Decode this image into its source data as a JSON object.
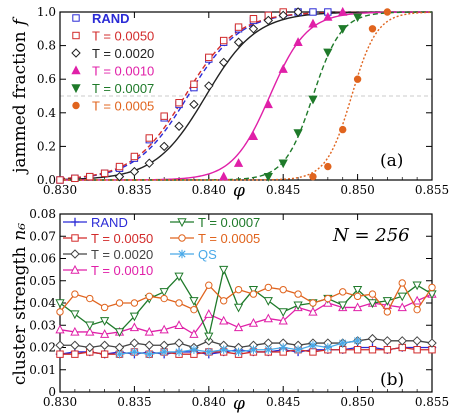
{
  "chart_data": [
    {
      "panel_label": "(a)",
      "type": "line",
      "xlabel": "φ",
      "ylabel": "jammed fraction",
      "ylabel_symbol": "f",
      "xlim": [
        0.83,
        0.855
      ],
      "ylim": [
        0,
        1.0
      ],
      "x_ticks": [
        "0.830",
        "0.835",
        "0.840",
        "0.845",
        "0.850",
        "0.855"
      ],
      "y_ticks": [
        "0.0",
        "0.2",
        "0.4",
        "0.6",
        "0.8",
        "1.0"
      ],
      "reference_line_y": 0.5,
      "legend_position": "top-left",
      "series": [
        {
          "name": "RAND",
          "color": "#2b2bd6",
          "marker": "square-open",
          "dash": "dash",
          "fit_center": 0.8386,
          "fit_width": 0.00175,
          "x": [
            0.83,
            0.831,
            0.832,
            0.833,
            0.834,
            0.835,
            0.836,
            0.837,
            0.838,
            0.839,
            0.84,
            0.841,
            0.842,
            0.843,
            0.844,
            0.845,
            0.846,
            0.847,
            0.848
          ],
          "y": [
            0.0,
            0.01,
            0.02,
            0.04,
            0.07,
            0.13,
            0.24,
            0.37,
            0.45,
            0.55,
            0.72,
            0.82,
            0.9,
            0.95,
            0.98,
            0.99,
            1.0,
            1.0,
            1.0
          ]
        },
        {
          "name": "T = 0.0050",
          "color": "#d22b2b",
          "marker": "square-open",
          "dash": "dash",
          "fit_center": 0.8384,
          "fit_width": 0.00175,
          "x": [
            0.83,
            0.831,
            0.832,
            0.833,
            0.834,
            0.835,
            0.836,
            0.837,
            0.838,
            0.839,
            0.84,
            0.841,
            0.842,
            0.843,
            0.844,
            0.845
          ],
          "y": [
            0.0,
            0.01,
            0.02,
            0.04,
            0.08,
            0.14,
            0.25,
            0.38,
            0.46,
            0.57,
            0.73,
            0.83,
            0.91,
            0.96,
            0.98,
            1.0
          ]
        },
        {
          "name": "T = 0.0020",
          "color": "#222222",
          "marker": "diamond-open",
          "dash": "solid",
          "fit_center": 0.8398,
          "fit_width": 0.0017,
          "x": [
            0.834,
            0.835,
            0.836,
            0.837,
            0.838,
            0.839,
            0.84,
            0.841,
            0.842,
            0.843,
            0.844,
            0.845,
            0.846
          ],
          "y": [
            0.02,
            0.05,
            0.1,
            0.2,
            0.32,
            0.45,
            0.56,
            0.7,
            0.82,
            0.9,
            0.95,
            0.98,
            1.0
          ]
        },
        {
          "name": "T = 0.0010",
          "color": "#e020a8",
          "marker": "triangle-up-filled",
          "dash": "solid",
          "fit_center": 0.8441,
          "fit_width": 0.00125,
          "x": [
            0.841,
            0.842,
            0.843,
            0.844,
            0.845,
            0.846,
            0.847,
            0.848,
            0.849
          ],
          "y": [
            0.02,
            0.1,
            0.26,
            0.45,
            0.66,
            0.82,
            0.93,
            0.97,
            1.0
          ]
        },
        {
          "name": "T = 0.0007",
          "color": "#1f7a2a",
          "marker": "triangle-down-filled",
          "dash": "dash",
          "fit_center": 0.847,
          "fit_width": 0.00095,
          "x": [
            0.844,
            0.845,
            0.846,
            0.847,
            0.848,
            0.849,
            0.85
          ],
          "y": [
            0.02,
            0.1,
            0.28,
            0.48,
            0.76,
            0.9,
            0.97
          ]
        },
        {
          "name": "T = 0.0005",
          "color": "#e0641e",
          "marker": "circle-filled",
          "dash": "dot",
          "fit_center": 0.8496,
          "fit_width": 0.00085,
          "x": [
            0.847,
            0.848,
            0.849,
            0.85,
            0.851,
            0.852
          ],
          "y": [
            0.02,
            0.08,
            0.3,
            0.6,
            0.9,
            1.0
          ]
        }
      ]
    },
    {
      "panel_label": "(b)",
      "type": "line",
      "xlabel": "φ",
      "ylabel": "cluster strength",
      "ylabel_symbol": "n₆",
      "annotation": "N = 256",
      "xlim": [
        0.83,
        0.855
      ],
      "ylim": [
        0,
        0.08
      ],
      "x_ticks": [
        "0.830",
        "0.835",
        "0.840",
        "0.845",
        "0.850",
        "0.855"
      ],
      "y_ticks": [
        "0",
        "0.01",
        "0.02",
        "0.03",
        "0.04",
        "0.05",
        "0.06",
        "0.07",
        "0.08"
      ],
      "legend_position": "top-left",
      "x": [
        0.83,
        0.831,
        0.832,
        0.833,
        0.834,
        0.835,
        0.836,
        0.837,
        0.838,
        0.839,
        0.84,
        0.841,
        0.842,
        0.843,
        0.844,
        0.845,
        0.846,
        0.847,
        0.848,
        0.849,
        0.85,
        0.851,
        0.852,
        0.853,
        0.854,
        0.855
      ],
      "series": [
        {
          "name": "RAND",
          "color": "#2b2bd6",
          "marker": "plus",
          "values": [
            0.017,
            0.018,
            0.018,
            0.017,
            0.018,
            0.017,
            0.018,
            0.017,
            0.018,
            0.018,
            0.017,
            0.018,
            0.019,
            0.018,
            0.018,
            0.019,
            0.018,
            0.019,
            0.019,
            0.019,
            0.02,
            0.02,
            0.019,
            0.02,
            0.02,
            0.02
          ]
        },
        {
          "name": "T = 0.0050",
          "color": "#d22b2b",
          "marker": "square-open",
          "values": [
            0.017,
            0.017,
            0.018,
            0.017,
            0.017,
            0.018,
            0.017,
            0.018,
            0.017,
            0.017,
            0.018,
            0.018,
            0.017,
            0.018,
            0.018,
            0.018,
            0.019,
            0.018,
            0.019,
            0.019,
            0.019,
            0.019,
            0.019,
            0.02,
            0.019,
            0.019
          ]
        },
        {
          "name": "T = 0.0020",
          "color": "#444444",
          "marker": "diamond-open",
          "values": [
            0.021,
            0.021,
            0.02,
            0.021,
            0.02,
            0.022,
            0.021,
            0.021,
            0.022,
            0.02,
            0.023,
            0.021,
            0.02,
            0.021,
            0.022,
            0.022,
            0.021,
            0.022,
            0.022,
            0.022,
            0.023,
            0.024,
            0.023,
            0.023,
            0.023,
            0.022
          ]
        },
        {
          "name": "T = 0.0010",
          "color": "#e020a8",
          "marker": "triangle-up-open",
          "values": [
            0.028,
            0.027,
            0.027,
            0.026,
            0.027,
            0.029,
            0.027,
            0.028,
            0.03,
            0.026,
            0.035,
            0.032,
            0.029,
            0.031,
            0.033,
            0.032,
            0.038,
            0.036,
            0.04,
            0.038,
            0.038,
            0.04,
            0.039,
            0.038,
            0.041,
            0.044
          ]
        },
        {
          "name": "T = 0.0007",
          "color": "#1f7a2a",
          "marker": "triangle-down-open",
          "values": [
            0.04,
            0.035,
            0.03,
            0.032,
            0.027,
            0.034,
            0.042,
            0.045,
            0.052,
            0.041,
            0.025,
            0.055,
            0.038,
            0.046,
            0.041,
            0.036,
            0.039,
            0.04,
            0.042,
            0.039,
            0.046,
            0.04,
            0.041,
            0.043,
            0.048,
            0.044
          ]
        },
        {
          "name": "T = 0.0005",
          "color": "#e0641e",
          "marker": "circle-open",
          "values": [
            0.036,
            0.044,
            0.042,
            0.038,
            0.04,
            0.04,
            0.043,
            0.042,
            0.04,
            0.037,
            0.048,
            0.041,
            0.046,
            0.044,
            0.047,
            0.046,
            0.044,
            0.04,
            0.042,
            0.045,
            0.043,
            0.044,
            0.036,
            0.049,
            0.037,
            0.047
          ]
        },
        {
          "name": "QS",
          "color": "#4aa9e8",
          "marker": "asterisk",
          "values": [
            null,
            null,
            null,
            null,
            0.017,
            0.018,
            0.017,
            0.018,
            0.018,
            0.019,
            0.018,
            0.019,
            0.018,
            0.019,
            0.019,
            0.02,
            0.019,
            0.021,
            0.02,
            0.022,
            0.023,
            null,
            null,
            null,
            null,
            null
          ]
        }
      ]
    }
  ]
}
